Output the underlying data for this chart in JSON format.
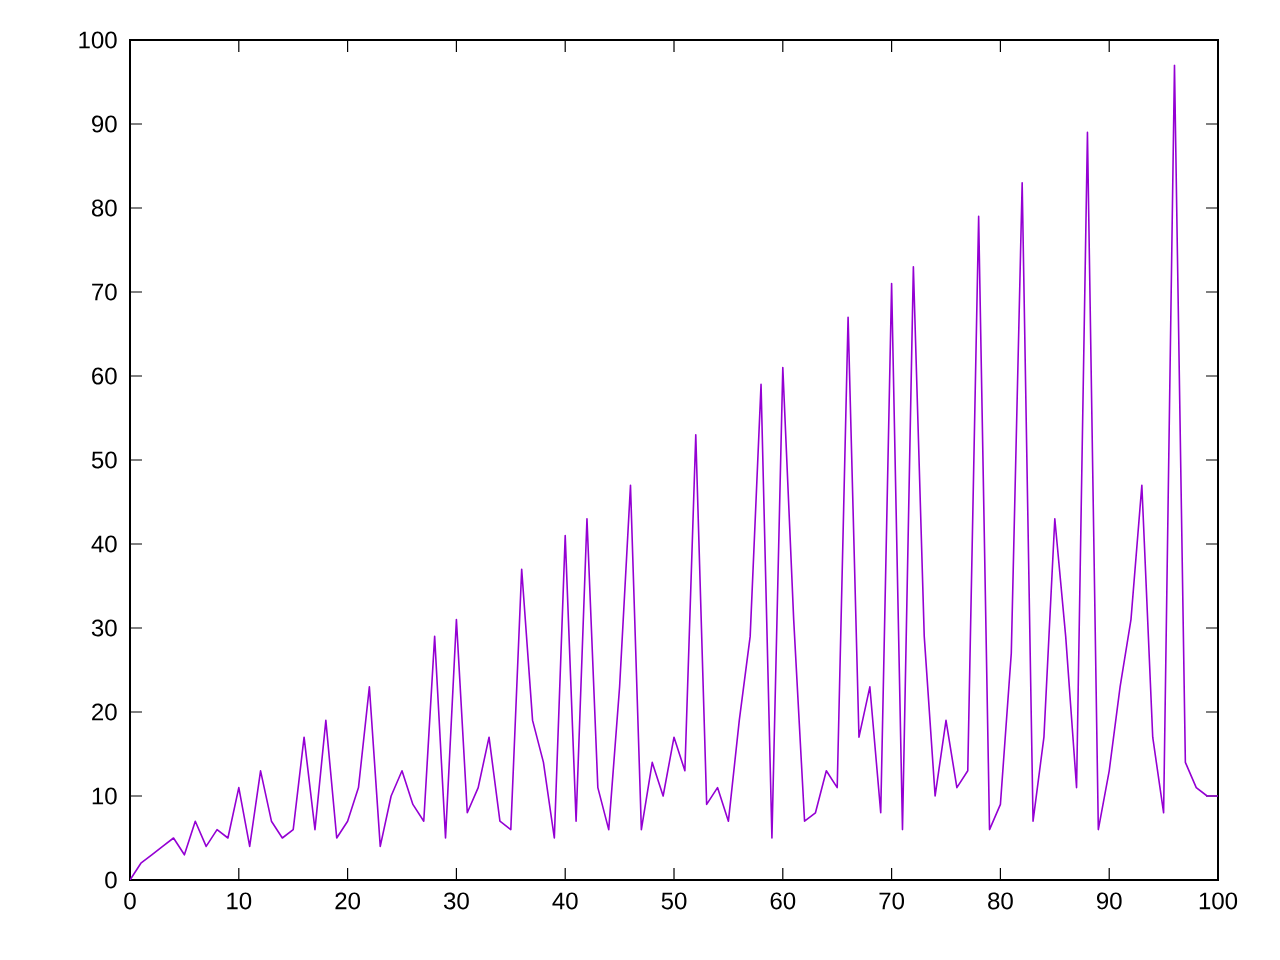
{
  "chart_data": {
    "type": "line",
    "color": "#9400d3",
    "x": [
      0,
      1,
      2,
      3,
      4,
      5,
      6,
      7,
      8,
      9,
      10,
      11,
      12,
      13,
      14,
      15,
      16,
      17,
      18,
      19,
      20,
      21,
      22,
      23,
      24,
      25,
      26,
      27,
      28,
      29,
      30,
      31,
      32,
      33,
      34,
      35,
      36,
      37,
      38,
      39,
      40,
      41,
      42,
      43,
      44,
      45,
      46,
      47,
      48,
      49,
      50,
      51,
      52,
      53,
      54,
      55,
      56,
      57,
      58,
      59,
      60,
      61,
      62,
      63,
      64,
      65,
      66,
      67,
      68,
      69,
      70,
      71,
      72,
      73,
      74,
      75,
      76,
      77,
      78,
      79,
      80,
      81,
      82,
      83,
      84,
      85,
      86,
      87,
      88,
      89,
      90,
      91,
      92,
      93,
      94,
      95,
      96,
      97,
      98,
      99,
      100
    ],
    "values": [
      0,
      2,
      3,
      4,
      5,
      3,
      7,
      4,
      6,
      5,
      11,
      4,
      13,
      7,
      5,
      6,
      17,
      6,
      19,
      5,
      7,
      11,
      23,
      4,
      10,
      13,
      9,
      7,
      29,
      5,
      31,
      8,
      11,
      17,
      7,
      6,
      37,
      19,
      14,
      5,
      41,
      7,
      43,
      11,
      6,
      23,
      47,
      6,
      14,
      10,
      17,
      13,
      53,
      9,
      11,
      7,
      19,
      29,
      59,
      5,
      61,
      31,
      7,
      8,
      13,
      11,
      67,
      17,
      23,
      8,
      71,
      6,
      73,
      29,
      10,
      19,
      11,
      13,
      79,
      6,
      9,
      27,
      83,
      7,
      17,
      43,
      29,
      11,
      89,
      6,
      13,
      23,
      31,
      47,
      17,
      8,
      97,
      14,
      11,
      10,
      10
    ],
    "xlim": [
      0,
      100
    ],
    "ylim": [
      0,
      100
    ],
    "xticks": [
      0,
      10,
      20,
      30,
      40,
      50,
      60,
      70,
      80,
      90,
      100
    ],
    "yticks": [
      0,
      10,
      20,
      30,
      40,
      50,
      60,
      70,
      80,
      90,
      100
    ],
    "grid": false,
    "marker": "none",
    "line_style": "solid"
  }
}
